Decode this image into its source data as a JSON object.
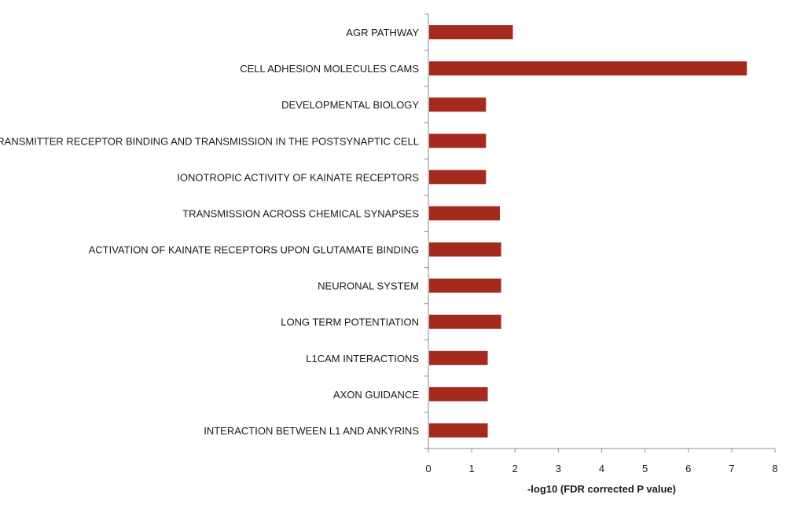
{
  "chart_data": {
    "type": "bar",
    "orientation": "horizontal",
    "title": "",
    "xlabel": "-log10 (FDR corrected P value)",
    "ylabel": "",
    "xlim": [
      0,
      8
    ],
    "xticks": [
      "0",
      "1",
      "2",
      "3",
      "4",
      "5",
      "6",
      "7",
      "8"
    ],
    "grid": false,
    "bar_color": "#A52A1E",
    "categories": [
      "AGR PATHWAY",
      "CELL ADHESION MOLECULES CAMS",
      "DEVELOPMENTAL BIOLOGY",
      "NEUROTRANSMITTER RECEPTOR BINDING AND TRANSMISSION IN THE POSTSYNAPTIC CELL",
      "IONOTROPIC ACTIVITY OF KAINATE RECEPTORS",
      "TRANSMISSION ACROSS CHEMICAL SYNAPSES",
      "ACTIVATION OF KAINATE RECEPTORS UPON GLUTAMATE BINDING",
      "NEURONAL SYSTEM",
      "LONG TERM POTENTIATION",
      "L1CAM INTERACTIONS",
      "AXON GUIDANCE",
      "INTERACTION BETWEEN L1 AND ANKYRINS"
    ],
    "values": [
      1.95,
      7.35,
      1.33,
      1.33,
      1.33,
      1.65,
      1.68,
      1.68,
      1.68,
      1.37,
      1.37,
      1.37
    ]
  }
}
